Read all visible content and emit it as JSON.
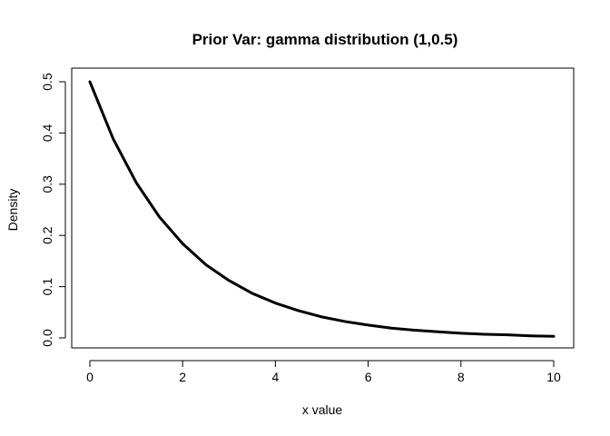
{
  "chart_data": {
    "type": "line",
    "title": "Prior Var: gamma distribution (1,0.5)",
    "xlabel": "x value",
    "ylabel": "Density",
    "xlim": [
      0,
      10
    ],
    "ylim": [
      0,
      0.5
    ],
    "x_ticks": [
      0,
      2,
      4,
      6,
      8,
      10
    ],
    "y_ticks": [
      0.0,
      0.1,
      0.2,
      0.3,
      0.4,
      0.5
    ],
    "x_tick_labels": [
      "0",
      "2",
      "4",
      "6",
      "8",
      "10"
    ],
    "y_tick_labels": [
      "0.0",
      "0.1",
      "0.2",
      "0.3",
      "0.4",
      "0.5"
    ],
    "grid": false,
    "series": [
      {
        "x": [
          0,
          0.5,
          1,
          1.5,
          2,
          2.5,
          3,
          3.5,
          4,
          4.5,
          5,
          5.5,
          6,
          6.5,
          7,
          7.5,
          8,
          8.5,
          9,
          9.5,
          10
        ],
        "values": [
          0.5,
          0.389,
          0.303,
          0.236,
          0.184,
          0.143,
          0.112,
          0.087,
          0.068,
          0.053,
          0.041,
          0.032,
          0.025,
          0.019,
          0.015,
          0.012,
          0.009,
          0.007,
          0.006,
          0.004,
          0.003
        ]
      }
    ]
  }
}
